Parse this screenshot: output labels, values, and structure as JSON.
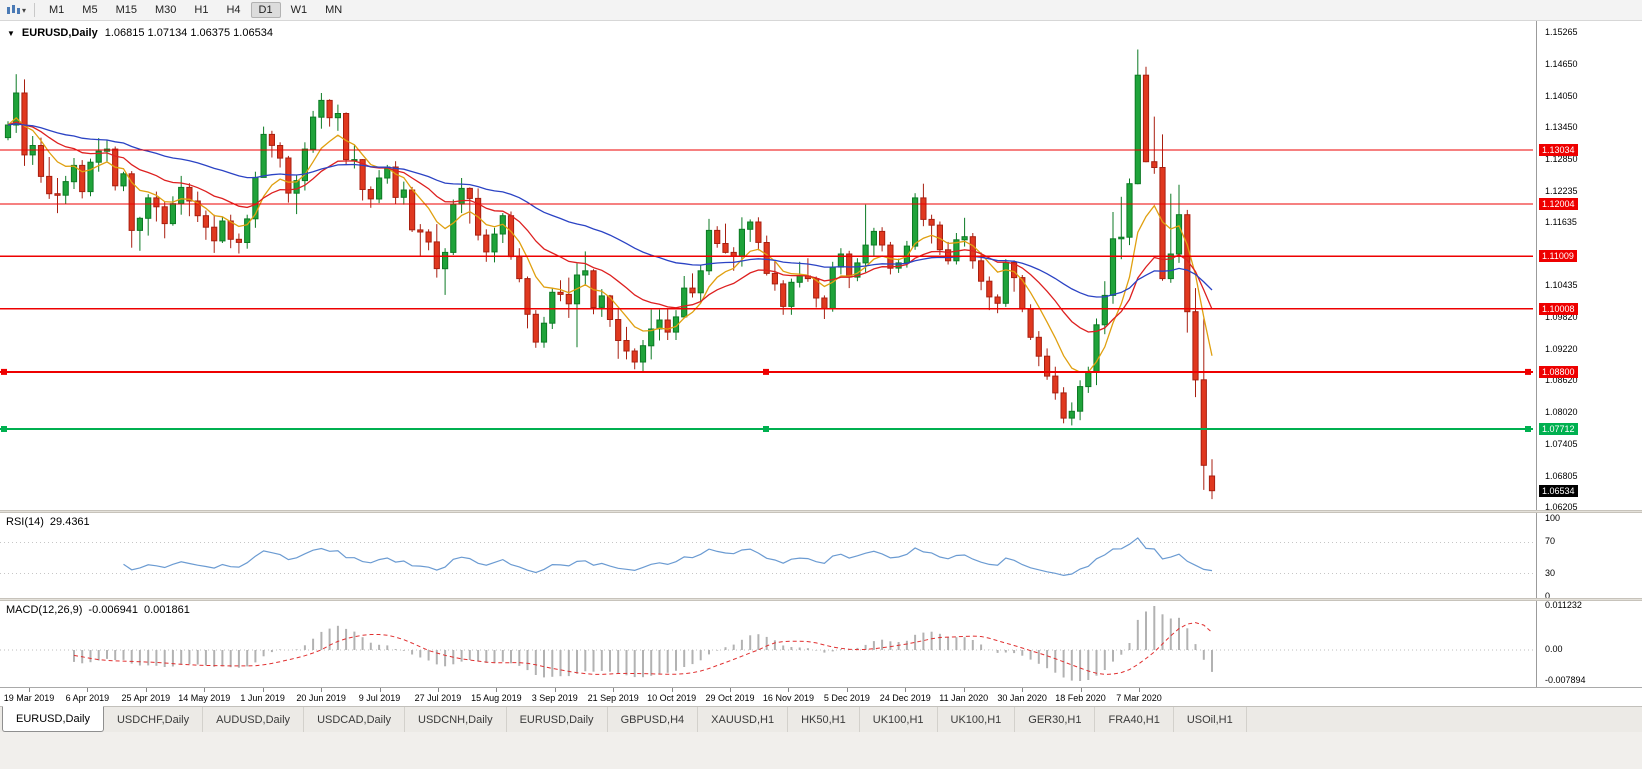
{
  "toolbar": {
    "timeframes": [
      {
        "label": "M1",
        "active": false
      },
      {
        "label": "M5",
        "active": false
      },
      {
        "label": "M15",
        "active": false
      },
      {
        "label": "M30",
        "active": false
      },
      {
        "label": "H1",
        "active": false
      },
      {
        "label": "H4",
        "active": false
      },
      {
        "label": "D1",
        "active": true
      },
      {
        "label": "W1",
        "active": false
      },
      {
        "label": "MN",
        "active": false
      }
    ]
  },
  "chart": {
    "symbol_title": "EURUSD,Daily",
    "ohlc_text": "1.06815 1.07134 1.06375 1.06534"
  },
  "chart_data": {
    "type": "candlestick",
    "symbol": "EURUSD",
    "period": "Daily",
    "ohlc": {
      "open": "1.06815",
      "high": "1.07134",
      "low": "1.06375",
      "close": "1.06534"
    },
    "price_axis": {
      "ticks": [
        "1.15265",
        "1.14650",
        "1.14050",
        "1.13450",
        "1.12850",
        "1.12235",
        "1.11635",
        "1.10435",
        "1.09820",
        "1.09220",
        "1.08620",
        "1.08020",
        "1.07405",
        "1.06805",
        "1.06205"
      ]
    },
    "hlines": [
      {
        "price": "1.13034",
        "color": "#ee0000",
        "selected": false
      },
      {
        "price": "1.12004",
        "color": "#ee0000",
        "selected": false
      },
      {
        "price": "1.11009",
        "color": "#ee0000",
        "selected": false
      },
      {
        "price": "1.10008",
        "color": "#ee0000",
        "selected": false
      },
      {
        "price": "1.08800",
        "color": "#ee0000",
        "selected": true
      },
      {
        "price": "1.07712",
        "color": "#00b050",
        "selected": true
      }
    ],
    "current_price": {
      "value": "1.06534",
      "bg": "#000000"
    },
    "moving_averages": [
      {
        "name": "fast",
        "period": 8,
        "color": "#e0a010"
      },
      {
        "name": "medium",
        "period": 20,
        "color": "#dd2020"
      },
      {
        "name": "slow",
        "period": 50,
        "color": "#2b43c4"
      }
    ],
    "colors": {
      "bull": "#1fa33a",
      "bull_border": "#0c7a24",
      "bear": "#e0381f",
      "bear_border": "#a81f10",
      "rsi_line": "#6b9bd2",
      "rsi_level": "#c6c6c6",
      "macd_hist": "#b2b2b2",
      "macd_signal": "#e03030"
    },
    "candles": [
      [
        1.1327,
        1.1358,
        1.1322,
        1.1351
      ],
      [
        1.1351,
        1.1448,
        1.1336,
        1.1412
      ],
      [
        1.1412,
        1.1438,
        1.1273,
        1.1294
      ],
      [
        1.1294,
        1.133,
        1.1275,
        1.1312
      ],
      [
        1.1312,
        1.1327,
        1.1241,
        1.1253
      ],
      [
        1.1253,
        1.129,
        1.121,
        1.122
      ],
      [
        1.122,
        1.125,
        1.1183,
        1.1217
      ],
      [
        1.1217,
        1.1254,
        1.12,
        1.1243
      ],
      [
        1.1243,
        1.1288,
        1.1229,
        1.1274
      ],
      [
        1.1274,
        1.1284,
        1.1211,
        1.1224
      ],
      [
        1.1224,
        1.1287,
        1.1215,
        1.128
      ],
      [
        1.128,
        1.1326,
        1.1262,
        1.1301
      ],
      [
        1.1301,
        1.1322,
        1.128,
        1.1305
      ],
      [
        1.1305,
        1.131,
        1.1226,
        1.1235
      ],
      [
        1.1235,
        1.1262,
        1.1225,
        1.1258
      ],
      [
        1.1258,
        1.1263,
        1.1117,
        1.115
      ],
      [
        1.115,
        1.1176,
        1.1111,
        1.1173
      ],
      [
        1.1173,
        1.1219,
        1.114,
        1.1212
      ],
      [
        1.1212,
        1.1224,
        1.1167,
        1.1195
      ],
      [
        1.1195,
        1.1205,
        1.1135,
        1.1163
      ],
      [
        1.1163,
        1.1215,
        1.1159,
        1.1201
      ],
      [
        1.1201,
        1.1254,
        1.118,
        1.1232
      ],
      [
        1.1232,
        1.124,
        1.1177,
        1.1206
      ],
      [
        1.1206,
        1.1224,
        1.1166,
        1.1178
      ],
      [
        1.1178,
        1.1188,
        1.1132,
        1.1156
      ],
      [
        1.1156,
        1.118,
        1.1107,
        1.113
      ],
      [
        1.113,
        1.1176,
        1.1126,
        1.1168
      ],
      [
        1.1168,
        1.118,
        1.1116,
        1.1133
      ],
      [
        1.1133,
        1.1144,
        1.1106,
        1.1127
      ],
      [
        1.1127,
        1.118,
        1.1115,
        1.1172
      ],
      [
        1.1172,
        1.1262,
        1.1155,
        1.1251
      ],
      [
        1.1251,
        1.1348,
        1.1251,
        1.1333
      ],
      [
        1.1333,
        1.134,
        1.1289,
        1.1312
      ],
      [
        1.1312,
        1.1318,
        1.127,
        1.1288
      ],
      [
        1.1288,
        1.1292,
        1.1203,
        1.1221
      ],
      [
        1.1221,
        1.1255,
        1.1181,
        1.1245
      ],
      [
        1.1245,
        1.1318,
        1.1226,
        1.1305
      ],
      [
        1.1305,
        1.1378,
        1.1298,
        1.1366
      ],
      [
        1.1366,
        1.1412,
        1.1344,
        1.1398
      ],
      [
        1.1398,
        1.14,
        1.1348,
        1.1365
      ],
      [
        1.1365,
        1.139,
        1.134,
        1.1373
      ],
      [
        1.1373,
        1.1375,
        1.1275,
        1.1285
      ],
      [
        1.1285,
        1.1312,
        1.1268,
        1.1285
      ],
      [
        1.1285,
        1.1286,
        1.1207,
        1.1228
      ],
      [
        1.1228,
        1.1234,
        1.1193,
        1.121
      ],
      [
        1.121,
        1.1265,
        1.1202,
        1.125
      ],
      [
        1.125,
        1.1275,
        1.1239,
        1.1271
      ],
      [
        1.1271,
        1.1282,
        1.12,
        1.1213
      ],
      [
        1.1213,
        1.1243,
        1.1199,
        1.1227
      ],
      [
        1.1227,
        1.1233,
        1.1147,
        1.1151
      ],
      [
        1.1151,
        1.1162,
        1.1101,
        1.1147
      ],
      [
        1.1147,
        1.1152,
        1.1112,
        1.1128
      ],
      [
        1.1128,
        1.1162,
        1.106,
        1.1077
      ],
      [
        1.1077,
        1.1116,
        1.1027,
        1.1108
      ],
      [
        1.1108,
        1.1209,
        1.1103,
        1.12
      ],
      [
        1.12,
        1.125,
        1.1183,
        1.123
      ],
      [
        1.123,
        1.1232,
        1.1163,
        1.1211
      ],
      [
        1.1211,
        1.123,
        1.1131,
        1.1141
      ],
      [
        1.1141,
        1.1152,
        1.109,
        1.1109
      ],
      [
        1.1109,
        1.1155,
        1.1089,
        1.1143
      ],
      [
        1.1143,
        1.1183,
        1.1126,
        1.1178
      ],
      [
        1.1178,
        1.1186,
        1.1094,
        1.11
      ],
      [
        1.11,
        1.1116,
        1.1051,
        1.1058
      ],
      [
        1.1058,
        1.1062,
        1.0963,
        1.099
      ],
      [
        1.099,
        1.0998,
        1.0926,
        1.0937
      ],
      [
        1.0937,
        1.0985,
        1.0926,
        1.0973
      ],
      [
        1.0973,
        1.104,
        1.0962,
        1.1032
      ],
      [
        1.1032,
        1.1055,
        1.1015,
        1.1028
      ],
      [
        1.1028,
        1.106,
        1.0983,
        1.101
      ],
      [
        1.101,
        1.1087,
        1.0927,
        1.1065
      ],
      [
        1.1065,
        1.111,
        1.1045,
        1.1073
      ],
      [
        1.1073,
        1.1076,
        1.099,
        1.1003
      ],
      [
        1.1003,
        1.1038,
        1.0985,
        1.1025
      ],
      [
        1.1025,
        1.1027,
        1.0966,
        1.098
      ],
      [
        1.098,
        1.1,
        1.0905,
        1.094
      ],
      [
        1.094,
        1.0966,
        1.0904,
        1.092
      ],
      [
        1.092,
        1.0925,
        1.0885,
        1.0899
      ],
      [
        1.0899,
        1.0941,
        1.0879,
        1.093
      ],
      [
        1.093,
        1.0999,
        1.0904,
        1.0962
      ],
      [
        1.0962,
        1.0999,
        1.094,
        1.0979
      ],
      [
        1.0979,
        1.1,
        1.0941,
        1.0956
      ],
      [
        1.0956,
        1.0998,
        1.0941,
        1.0985
      ],
      [
        1.0985,
        1.1063,
        1.0985,
        1.104
      ],
      [
        1.104,
        1.1068,
        1.1022,
        1.1031
      ],
      [
        1.1031,
        1.1085,
        1.1012,
        1.1073
      ],
      [
        1.1073,
        1.1172,
        1.1065,
        1.115
      ],
      [
        1.115,
        1.1158,
        1.1117,
        1.1125
      ],
      [
        1.1125,
        1.1163,
        1.1106,
        1.1108
      ],
      [
        1.1108,
        1.1118,
        1.1073,
        1.1101
      ],
      [
        1.1101,
        1.1175,
        1.1081,
        1.1152
      ],
      [
        1.1152,
        1.1171,
        1.1128,
        1.1166
      ],
      [
        1.1166,
        1.1175,
        1.1112,
        1.1127
      ],
      [
        1.1127,
        1.114,
        1.1064,
        1.1068
      ],
      [
        1.1068,
        1.1093,
        1.1035,
        1.1048
      ],
      [
        1.1048,
        1.1055,
        1.0989,
        1.1005
      ],
      [
        1.1005,
        1.1058,
        1.0989,
        1.1051
      ],
      [
        1.1051,
        1.109,
        1.1041,
        1.1063
      ],
      [
        1.1063,
        1.1097,
        1.1052,
        1.1058
      ],
      [
        1.1058,
        1.1062,
        1.1003,
        1.1021
      ],
      [
        1.1021,
        1.1026,
        1.0981,
        1.1001
      ],
      [
        1.1001,
        1.109,
        1.0995,
        1.108
      ],
      [
        1.108,
        1.1116,
        1.1066,
        1.1105
      ],
      [
        1.1105,
        1.1111,
        1.104,
        1.1061
      ],
      [
        1.1061,
        1.1097,
        1.1053,
        1.1088
      ],
      [
        1.1088,
        1.1199,
        1.107,
        1.1122
      ],
      [
        1.1122,
        1.1155,
        1.11,
        1.1148
      ],
      [
        1.1148,
        1.1156,
        1.111,
        1.1122
      ],
      [
        1.1122,
        1.1128,
        1.1066,
        1.1078
      ],
      [
        1.1078,
        1.1096,
        1.1069,
        1.1088
      ],
      [
        1.1088,
        1.113,
        1.1079,
        1.112
      ],
      [
        1.112,
        1.1221,
        1.1113,
        1.1212
      ],
      [
        1.1212,
        1.1239,
        1.1158,
        1.1171
      ],
      [
        1.1171,
        1.118,
        1.1125,
        1.116
      ],
      [
        1.116,
        1.1167,
        1.1103,
        1.1113
      ],
      [
        1.1113,
        1.1128,
        1.1085,
        1.1092
      ],
      [
        1.1092,
        1.1145,
        1.1085,
        1.1132
      ],
      [
        1.1132,
        1.1174,
        1.1119,
        1.1138
      ],
      [
        1.1138,
        1.1145,
        1.1077,
        1.1092
      ],
      [
        1.1092,
        1.1108,
        1.1036,
        1.1053
      ],
      [
        1.1053,
        1.1062,
        1.0998,
        1.1023
      ],
      [
        1.1023,
        1.1028,
        1.0992,
        1.1011
      ],
      [
        1.1011,
        1.1095,
        1.1004,
        1.1089
      ],
      [
        1.1089,
        1.1093,
        1.1033,
        1.106
      ],
      [
        1.106,
        1.1065,
        1.0994,
        1.1
      ],
      [
        1.1,
        1.1009,
        1.0941,
        1.0946
      ],
      [
        1.0946,
        1.0958,
        1.0891,
        1.091
      ],
      [
        1.091,
        1.0925,
        1.0865,
        1.0872
      ],
      [
        1.0872,
        1.089,
        1.0827,
        1.084
      ],
      [
        1.084,
        1.0851,
        1.0782,
        1.0792
      ],
      [
        1.0792,
        1.0822,
        1.0778,
        1.0805
      ],
      [
        1.0805,
        1.0864,
        1.0788,
        1.0852
      ],
      [
        1.0852,
        1.089,
        1.084,
        1.088
      ],
      [
        1.088,
        1.0982,
        1.0855,
        1.097
      ],
      [
        1.097,
        1.1053,
        1.0952,
        1.1026
      ],
      [
        1.1026,
        1.1185,
        1.101,
        1.1134
      ],
      [
        1.1134,
        1.1214,
        1.1095,
        1.1137
      ],
      [
        1.1137,
        1.1249,
        1.1122,
        1.1239
      ],
      [
        1.1239,
        1.1495,
        1.1238,
        1.1446
      ],
      [
        1.1446,
        1.1462,
        1.128,
        1.1281
      ],
      [
        1.1281,
        1.1367,
        1.1258,
        1.127
      ],
      [
        1.127,
        1.1333,
        1.1054,
        1.1058
      ],
      [
        1.1058,
        1.122,
        1.105,
        1.1105
      ],
      [
        1.1105,
        1.1237,
        1.1088,
        1.118
      ],
      [
        1.118,
        1.1189,
        1.0955,
        1.0995
      ],
      [
        1.0995,
        1.104,
        1.0832,
        1.0865
      ],
      [
        1.0865,
        1.0982,
        1.0655,
        1.0702
      ],
      [
        1.06815,
        1.07134,
        1.06375,
        1.06534
      ]
    ],
    "date_axis": [
      "19 Mar 2019",
      "6 Apr 2019",
      "25 Apr 2019",
      "14 May 2019",
      "1 Jun 2019",
      "20 Jun 2019",
      "9 Jul 2019",
      "27 Jul 2019",
      "15 Aug 2019",
      "3 Sep 2019",
      "21 Sep 2019",
      "10 Oct 2019",
      "29 Oct 2019",
      "16 Nov 2019",
      "5 Dec 2019",
      "24 Dec 2019",
      "11 Jan 2020",
      "30 Jan 2020",
      "18 Feb 2020",
      "7 Mar 2020"
    ],
    "indicators": {
      "rsi": {
        "label": "RSI(14)",
        "value": "29.4361",
        "period": 14,
        "levels": [
          70,
          30
        ],
        "axis": [
          {
            "v": 100,
            "label": "100"
          },
          {
            "v": 70,
            "label": "70"
          },
          {
            "v": 30,
            "label": "30"
          },
          {
            "v": 0,
            "label": "0"
          }
        ]
      },
      "macd": {
        "label": "MACD(12,26,9)",
        "main_value": "-0.006941",
        "signal_value": "0.001861",
        "axis": [
          {
            "v": 0.011232,
            "label": "0.011232"
          },
          {
            "v": 0,
            "label": "0.00"
          },
          {
            "v": -0.007894,
            "label": "-0.007894"
          }
        ],
        "axis_top": 0.011232,
        "axis_bottom": -0.007894
      }
    }
  },
  "tabs": [
    {
      "label": "EURUSD,Daily",
      "active": true
    },
    {
      "label": "USDCHF,Daily",
      "active": false
    },
    {
      "label": "AUDUSD,Daily",
      "active": false
    },
    {
      "label": "USDCAD,Daily",
      "active": false
    },
    {
      "label": "USDCNH,Daily",
      "active": false
    },
    {
      "label": "EURUSD,Daily",
      "active": false
    },
    {
      "label": "GBPUSD,H4",
      "active": false
    },
    {
      "label": "XAUUSD,H1",
      "active": false
    },
    {
      "label": "HK50,H1",
      "active": false
    },
    {
      "label": "UK100,H1",
      "active": false
    },
    {
      "label": "UK100,H1",
      "active": false
    },
    {
      "label": "GER30,H1",
      "active": false
    },
    {
      "label": "FRA40,H1",
      "active": false
    },
    {
      "label": "USOil,H1",
      "active": false
    }
  ]
}
